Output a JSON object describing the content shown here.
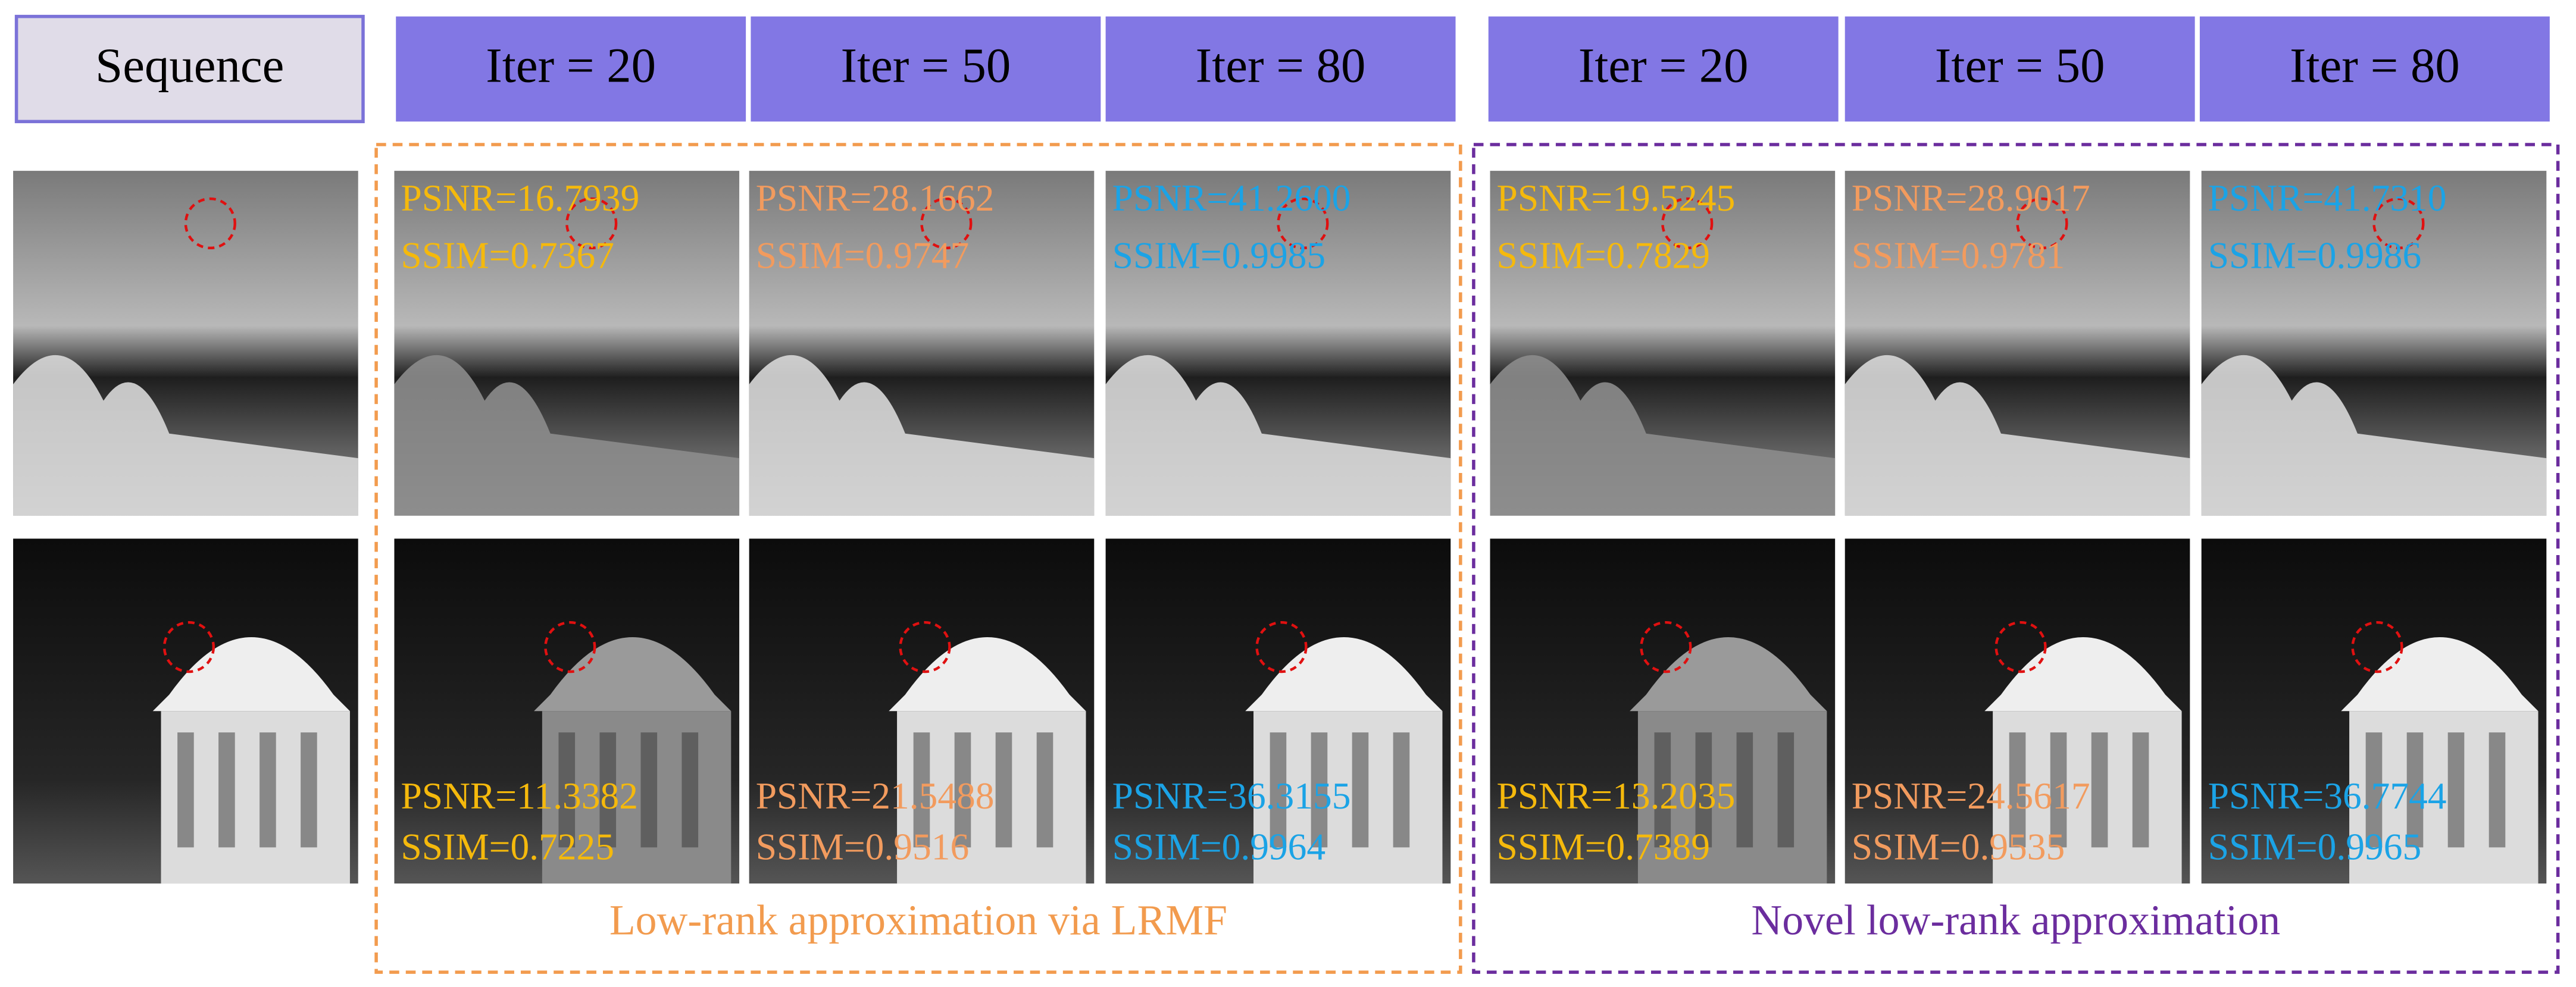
{
  "header": {
    "sequence": "Sequence",
    "columns": [
      "Iter = 20",
      "Iter = 50",
      "Iter = 80",
      "Iter = 20",
      "Iter = 50",
      "Iter = 80"
    ]
  },
  "groups": [
    {
      "label": "Low-rank approximation via LRMF",
      "rows": [
        [
          {
            "psnr": "PSNR=16.7939",
            "ssim": "SSIM=0.7367"
          },
          {
            "psnr": "PSNR=28.1662",
            "ssim": "SSIM=0.9747"
          },
          {
            "psnr": "PSNR=41.2600",
            "ssim": "SSIM=0.9985"
          }
        ],
        [
          {
            "psnr": "PSNR=11.3382",
            "ssim": "SSIM=0.7225"
          },
          {
            "psnr": "PSNR=21.5488",
            "ssim": "SSIM=0.9516"
          },
          {
            "psnr": "PSNR=36.3155",
            "ssim": "SSIM=0.9964"
          }
        ]
      ]
    },
    {
      "label": "Novel low-rank approximation",
      "rows": [
        [
          {
            "psnr": "PSNR=19.5245",
            "ssim": "SSIM=0.7829"
          },
          {
            "psnr": "PSNR=28.9017",
            "ssim": "SSIM=0.9781"
          },
          {
            "psnr": "PSNR=41.7310",
            "ssim": "SSIM=0.9986"
          }
        ],
        [
          {
            "psnr": "PSNR=13.2035",
            "ssim": "SSIM=0.7389"
          },
          {
            "psnr": "PSNR=24.5617",
            "ssim": "SSIM=0.9535"
          },
          {
            "psnr": "PSNR=36.7744",
            "ssim": "SSIM=0.9965"
          }
        ]
      ]
    }
  ]
}
